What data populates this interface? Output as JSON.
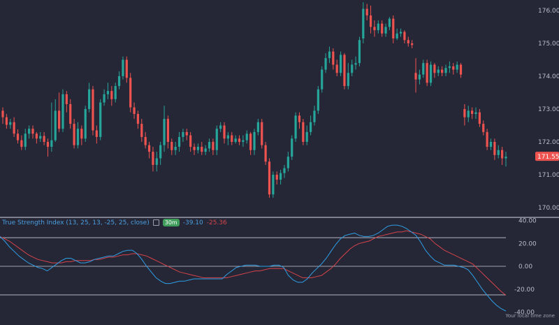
{
  "indicator": {
    "title": "True Strength Index (13, 25, 13, -25, 25, close)",
    "timeframe": "30m",
    "tsi_value": "-39.10",
    "signal_value": "-25.36"
  },
  "price_axis": {
    "ticks": [
      "176.00",
      "175.00",
      "174.00",
      "173.00",
      "172.00",
      "171.00",
      "170.00"
    ],
    "last_price": "171.55"
  },
  "indicator_axis": {
    "ticks": [
      "40.00",
      "20.00",
      "0.00",
      "-20.00",
      "-40.00"
    ]
  },
  "footer": {
    "timezone_note": "Your local time zone"
  },
  "colors": {
    "background": "#252737",
    "up": "#26a69a",
    "down": "#ef5350",
    "tsi": "#2f9fe6",
    "signal": "#d7434a",
    "level_lines": "#c9ccd6"
  },
  "chart_data": [
    {
      "type": "candlestick",
      "ylim": [
        169.8,
        176.3
      ],
      "last_price": 171.55,
      "candles": [
        [
          172.95,
          172.75,
          172.55,
          173.05
        ],
        [
          172.75,
          172.52,
          172.4,
          172.85
        ],
        [
          172.52,
          172.6,
          172.4,
          172.7
        ],
        [
          172.6,
          172.25,
          172.15,
          172.75
        ],
        [
          172.25,
          172.05,
          171.95,
          172.38
        ],
        [
          172.05,
          171.85,
          171.75,
          172.2
        ],
        [
          171.85,
          172.25,
          171.75,
          172.4
        ],
        [
          172.25,
          172.4,
          172.1,
          172.5
        ],
        [
          172.4,
          172.25,
          172.1,
          172.5
        ],
        [
          172.25,
          172.1,
          171.95,
          172.3
        ],
        [
          172.1,
          172.18,
          172.0,
          172.3
        ],
        [
          172.18,
          172.0,
          171.9,
          172.3
        ],
        [
          172.0,
          171.85,
          171.55,
          172.1
        ],
        [
          171.85,
          172.05,
          171.7,
          173.2
        ],
        [
          172.05,
          172.95,
          172.0,
          173.3
        ],
        [
          172.95,
          172.4,
          172.3,
          173.5
        ],
        [
          172.4,
          173.45,
          172.3,
          173.6
        ],
        [
          173.45,
          173.15,
          172.9,
          173.55
        ],
        [
          173.15,
          172.55,
          172.4,
          173.3
        ],
        [
          172.55,
          171.9,
          171.8,
          172.7
        ],
        [
          171.9,
          172.4,
          171.8,
          172.6
        ],
        [
          172.4,
          172.1,
          171.9,
          172.5
        ],
        [
          172.1,
          173.0,
          172.0,
          173.1
        ],
        [
          173.0,
          173.6,
          172.9,
          173.8
        ],
        [
          173.6,
          172.35,
          172.2,
          173.7
        ],
        [
          172.35,
          172.15,
          171.95,
          172.5
        ],
        [
          172.15,
          173.2,
          172.05,
          173.3
        ],
        [
          173.2,
          173.45,
          173.1,
          173.6
        ],
        [
          173.45,
          173.55,
          173.3,
          173.8
        ],
        [
          173.55,
          173.3,
          173.1,
          173.7
        ],
        [
          173.3,
          173.7,
          173.2,
          173.8
        ],
        [
          173.7,
          174.0,
          173.6,
          174.15
        ],
        [
          174.0,
          174.5,
          173.9,
          174.6
        ],
        [
          174.5,
          173.95,
          173.8,
          174.6
        ],
        [
          173.95,
          173.05,
          172.9,
          174.1
        ],
        [
          173.05,
          172.85,
          172.7,
          173.2
        ],
        [
          172.85,
          172.55,
          172.4,
          172.95
        ],
        [
          172.55,
          172.15,
          172.0,
          172.7
        ],
        [
          172.15,
          171.9,
          171.8,
          172.3
        ],
        [
          171.9,
          171.7,
          171.5,
          172.0
        ],
        [
          171.7,
          171.3,
          171.1,
          171.85
        ],
        [
          171.3,
          171.5,
          171.1,
          171.7
        ],
        [
          171.5,
          171.9,
          171.3,
          172.0
        ],
        [
          171.9,
          172.7,
          171.7,
          173.1
        ],
        [
          172.7,
          172.0,
          171.8,
          172.8
        ],
        [
          172.0,
          171.75,
          171.6,
          172.1
        ],
        [
          171.75,
          171.85,
          171.6,
          172.0
        ],
        [
          171.85,
          172.15,
          171.7,
          172.3
        ],
        [
          172.15,
          172.3,
          172.0,
          172.4
        ],
        [
          172.3,
          172.2,
          172.05,
          172.4
        ],
        [
          172.2,
          171.85,
          171.7,
          172.3
        ],
        [
          171.85,
          171.75,
          171.6,
          171.95
        ],
        [
          171.75,
          171.85,
          171.65,
          171.95
        ],
        [
          171.85,
          171.7,
          171.6,
          172.0
        ],
        [
          171.7,
          171.8,
          171.6,
          171.9
        ],
        [
          171.8,
          172.0,
          171.7,
          172.1
        ],
        [
          172.0,
          171.75,
          171.6,
          172.1
        ],
        [
          171.75,
          172.4,
          171.6,
          172.5
        ],
        [
          172.4,
          172.5,
          172.3,
          172.6
        ],
        [
          172.5,
          172.1,
          171.95,
          172.6
        ],
        [
          172.1,
          172.2,
          171.9,
          172.3
        ],
        [
          172.2,
          172.0,
          171.9,
          172.3
        ],
        [
          172.0,
          172.1,
          171.95,
          172.2
        ],
        [
          172.1,
          172.0,
          171.9,
          172.2
        ],
        [
          172.0,
          172.05,
          171.85,
          172.2
        ],
        [
          172.05,
          172.25,
          171.95,
          172.35
        ],
        [
          172.25,
          171.75,
          171.6,
          172.3
        ],
        [
          171.75,
          172.3,
          171.6,
          172.4
        ],
        [
          172.3,
          172.6,
          172.2,
          172.7
        ],
        [
          172.6,
          171.9,
          171.8,
          172.7
        ],
        [
          171.9,
          171.4,
          171.3,
          172.0
        ],
        [
          171.4,
          170.4,
          170.3,
          171.5
        ],
        [
          170.4,
          171.0,
          170.3,
          171.1
        ],
        [
          171.0,
          170.85,
          170.7,
          171.1
        ],
        [
          170.85,
          171.05,
          170.7,
          171.15
        ],
        [
          171.05,
          171.2,
          170.9,
          171.3
        ],
        [
          171.2,
          171.55,
          171.1,
          171.7
        ],
        [
          171.55,
          172.1,
          171.45,
          172.2
        ],
        [
          172.1,
          172.8,
          172.0,
          172.9
        ],
        [
          172.8,
          172.6,
          172.4,
          172.9
        ],
        [
          172.6,
          172.0,
          171.9,
          172.7
        ],
        [
          172.0,
          172.3,
          171.9,
          172.5
        ],
        [
          172.3,
          172.6,
          172.2,
          172.8
        ],
        [
          172.6,
          172.95,
          172.5,
          173.1
        ],
        [
          172.95,
          173.6,
          172.85,
          173.7
        ],
        [
          173.6,
          174.2,
          173.5,
          174.3
        ],
        [
          174.2,
          174.55,
          174.1,
          174.7
        ],
        [
          174.55,
          174.75,
          174.4,
          174.9
        ],
        [
          174.75,
          174.35,
          174.2,
          174.85
        ],
        [
          174.35,
          174.1,
          174.0,
          174.5
        ],
        [
          174.1,
          174.65,
          174.0,
          174.75
        ],
        [
          174.65,
          173.7,
          173.6,
          174.7
        ],
        [
          173.7,
          174.1,
          173.6,
          174.4
        ],
        [
          174.1,
          174.35,
          174.0,
          174.5
        ],
        [
          174.35,
          174.4,
          174.2,
          174.6
        ],
        [
          174.4,
          175.1,
          174.3,
          175.2
        ],
        [
          175.15,
          176.05,
          175.0,
          176.25
        ],
        [
          176.05,
          175.85,
          175.7,
          176.2
        ],
        [
          175.85,
          175.5,
          175.3,
          176.15
        ],
        [
          175.5,
          175.4,
          175.2,
          175.7
        ],
        [
          175.4,
          175.6,
          175.3,
          175.7
        ],
        [
          175.6,
          175.3,
          175.2,
          175.7
        ],
        [
          175.3,
          175.5,
          175.2,
          175.6
        ],
        [
          175.5,
          175.75,
          175.4,
          175.8
        ],
        [
          175.75,
          175.15,
          175.0,
          175.85
        ],
        [
          175.15,
          175.3,
          175.1,
          175.45
        ],
        [
          175.3,
          175.35,
          175.2,
          175.45
        ],
        [
          175.35,
          175.1,
          175.0,
          175.4
        ],
        [
          175.1,
          175.0,
          174.9,
          175.2
        ],
        [
          175.0,
          174.95,
          174.85,
          175.1
        ],
        [
          174.1,
          173.9,
          173.5,
          174.55
        ],
        [
          173.9,
          174.05,
          173.75,
          174.2
        ],
        [
          174.05,
          174.4,
          173.95,
          174.5
        ],
        [
          174.4,
          173.8,
          173.7,
          174.5
        ],
        [
          173.8,
          174.35,
          173.7,
          174.45
        ],
        [
          174.35,
          174.1,
          173.95,
          174.4
        ],
        [
          174.1,
          174.2,
          174.0,
          174.3
        ],
        [
          174.2,
          174.1,
          174.0,
          174.3
        ],
        [
          174.1,
          174.25,
          174.0,
          174.35
        ],
        [
          174.25,
          174.3,
          174.1,
          174.45
        ],
        [
          174.3,
          174.2,
          174.05,
          174.4
        ],
        [
          174.2,
          174.35,
          174.1,
          174.45
        ],
        [
          174.35,
          174.05,
          173.95,
          174.4
        ],
        [
          173.0,
          172.75,
          172.5,
          173.15
        ],
        [
          172.75,
          172.95,
          172.6,
          173.1
        ],
        [
          172.95,
          172.85,
          172.7,
          173.05
        ],
        [
          172.85,
          172.9,
          172.7,
          173.05
        ],
        [
          172.9,
          172.55,
          172.45,
          173.0
        ],
        [
          172.55,
          172.3,
          172.2,
          172.65
        ],
        [
          172.3,
          171.85,
          171.75,
          172.4
        ],
        [
          171.85,
          172.0,
          171.75,
          172.1
        ],
        [
          172.0,
          171.6,
          171.45,
          172.1
        ],
        [
          171.6,
          171.75,
          171.5,
          171.9
        ],
        [
          171.75,
          171.5,
          171.3,
          171.85
        ],
        [
          171.5,
          171.55,
          171.25,
          171.7
        ]
      ]
    },
    {
      "type": "line",
      "title": "True Strength Index (13, 25, 13, -25, 25, close)",
      "ylim": [
        -42,
        43
      ],
      "levels": [
        25,
        0,
        -25
      ],
      "series": [
        {
          "name": "TSI",
          "color": "#2f9fe6",
          "values": [
            26,
            22,
            17,
            13,
            9,
            6,
            3,
            1,
            -1,
            -2,
            -4,
            -1,
            2,
            5,
            7,
            7,
            5,
            3,
            3,
            4,
            6,
            7,
            8,
            9,
            9,
            11,
            13,
            14,
            14,
            11,
            6,
            0,
            -5,
            -10,
            -13,
            -15,
            -15,
            -14,
            -13,
            -13,
            -12,
            -11,
            -11,
            -11,
            -11,
            -11,
            -11,
            -11,
            -7,
            -4,
            -1,
            0,
            1,
            1,
            1,
            0,
            0,
            0,
            1,
            1,
            -1,
            -8,
            -12,
            -14,
            -14,
            -11,
            -6,
            -2,
            2,
            7,
            13,
            19,
            24,
            27,
            28,
            29,
            27,
            26,
            26,
            27,
            29,
            32,
            35,
            36,
            36,
            35,
            33,
            30,
            27,
            21,
            14,
            9,
            5,
            3,
            1,
            1,
            1,
            0,
            -1,
            -3,
            -8,
            -14,
            -20,
            -25,
            -30,
            -34,
            -37,
            -39.1
          ]
        },
        {
          "name": "Signal",
          "color": "#d7434a",
          "values": [
            26,
            24,
            22,
            19,
            16,
            13,
            10,
            8,
            6,
            5,
            4,
            3,
            3,
            3,
            4,
            4,
            5,
            5,
            5,
            5,
            6,
            6,
            7,
            8,
            8,
            9,
            10,
            10,
            11,
            11,
            10,
            9,
            7,
            5,
            3,
            1,
            -1,
            -3,
            -5,
            -6,
            -7,
            -8,
            -9,
            -10,
            -10,
            -10,
            -10,
            -10,
            -10,
            -9,
            -8,
            -7,
            -6,
            -5,
            -4,
            -4,
            -3,
            -2,
            -2,
            -2,
            -2,
            -4,
            -6,
            -8,
            -10,
            -10,
            -10,
            -9,
            -8,
            -5,
            -2,
            2,
            7,
            11,
            15,
            18,
            20,
            21,
            22,
            24,
            26,
            27,
            28,
            29,
            30,
            30,
            31,
            30,
            29,
            28,
            26,
            24,
            20,
            17,
            14,
            12,
            10,
            8,
            6,
            4,
            2,
            -2,
            -6,
            -10,
            -14,
            -18,
            -22,
            -25.36
          ]
        }
      ]
    }
  ]
}
